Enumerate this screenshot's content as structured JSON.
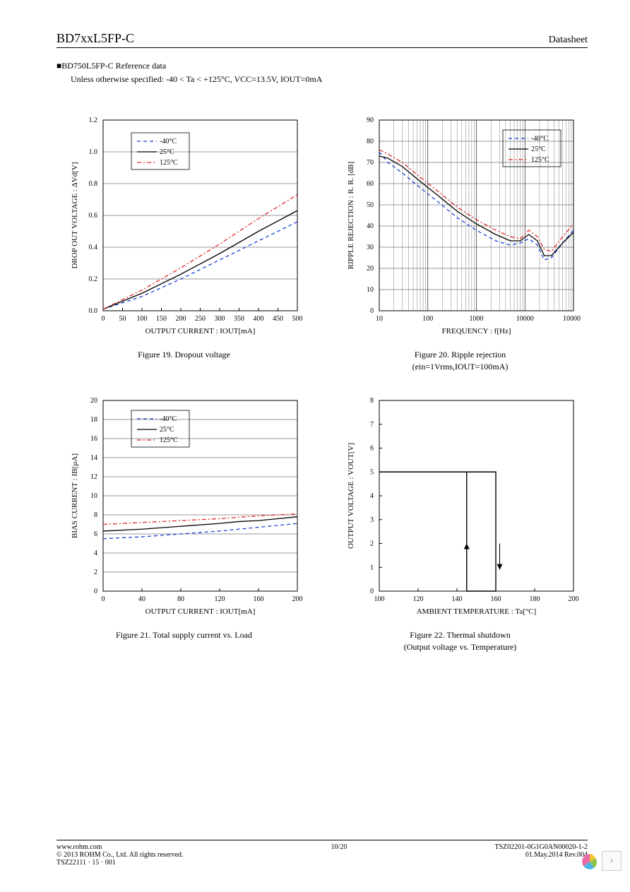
{
  "header": {
    "part": "BD7xxL5FP-C",
    "doc_type": "Datasheet"
  },
  "section": {
    "title": "■BD750L5FP-C Reference data",
    "conditions": "Unless otherwise specified: -40 < Ta < +125°C, VCC=13.5V, IOUT=0mA"
  },
  "legend_labels": [
    "-40°C",
    "25°C",
    "125°C"
  ],
  "legend_colors": {
    "m40": "#1a3fd6",
    "25": "#000000",
    "125": "#e02a2a"
  },
  "chart19": {
    "caption": "Figure 19. Dropout voltage",
    "xlabel": "OUTPUT CURRENT : IOUT[mA]",
    "ylabel": "DROP OUT VOLTAGE : ΔVd[V]",
    "xlim": [
      0,
      500
    ],
    "xticks": [
      0,
      50,
      100,
      150,
      200,
      250,
      300,
      350,
      400,
      450,
      500
    ],
    "ylim": [
      0.0,
      1.2
    ],
    "yticks": [
      0.0,
      0.2,
      0.4,
      0.6,
      0.8,
      1.0,
      1.2
    ],
    "series": {
      "m40": [
        [
          0,
          0.01
        ],
        [
          100,
          0.09
        ],
        [
          200,
          0.2
        ],
        [
          300,
          0.32
        ],
        [
          400,
          0.44
        ],
        [
          500,
          0.56
        ]
      ],
      "25": [
        [
          0,
          0.01
        ],
        [
          100,
          0.11
        ],
        [
          200,
          0.23
        ],
        [
          300,
          0.36
        ],
        [
          400,
          0.5
        ],
        [
          500,
          0.63
        ]
      ],
      "125": [
        [
          0,
          0.01
        ],
        [
          100,
          0.13
        ],
        [
          200,
          0.27
        ],
        [
          300,
          0.42
        ],
        [
          400,
          0.58
        ],
        [
          500,
          0.73
        ]
      ]
    }
  },
  "chart20": {
    "caption": "Figure 20. Ripple rejection",
    "caption_sub": "(ein=1Vrms,IOUT=100mA)",
    "xlabel": "FREQUENCY : f[Hz]",
    "ylabel": "RIPPLE REJECTION : R. R. [dB]",
    "xlim_log": [
      10,
      100000
    ],
    "xticks_log": [
      10,
      100,
      1000,
      10000,
      100000
    ],
    "ylim": [
      0,
      90
    ],
    "yticks": [
      0,
      10,
      20,
      30,
      40,
      50,
      60,
      70,
      80,
      90
    ],
    "series": {
      "m40": [
        [
          10,
          75
        ],
        [
          15,
          70
        ],
        [
          30,
          65
        ],
        [
          70,
          58
        ],
        [
          150,
          52
        ],
        [
          400,
          44
        ],
        [
          1000,
          38
        ],
        [
          2500,
          33
        ],
        [
          5000,
          31
        ],
        [
          8000,
          32
        ],
        [
          12000,
          34
        ],
        [
          18000,
          31
        ],
        [
          25000,
          24
        ],
        [
          35000,
          25
        ],
        [
          60000,
          32
        ],
        [
          100000,
          38
        ]
      ],
      "25": [
        [
          10,
          73
        ],
        [
          15,
          72
        ],
        [
          30,
          68
        ],
        [
          70,
          61
        ],
        [
          150,
          55
        ],
        [
          400,
          47
        ],
        [
          1000,
          41
        ],
        [
          2500,
          36
        ],
        [
          5000,
          33
        ],
        [
          8000,
          33
        ],
        [
          12000,
          36
        ],
        [
          18000,
          33
        ],
        [
          25000,
          26
        ],
        [
          35000,
          26
        ],
        [
          60000,
          32
        ],
        [
          100000,
          37
        ]
      ],
      "125": [
        [
          10,
          76
        ],
        [
          15,
          74
        ],
        [
          30,
          70
        ],
        [
          70,
          63
        ],
        [
          150,
          57
        ],
        [
          400,
          49
        ],
        [
          1000,
          43
        ],
        [
          2500,
          38
        ],
        [
          5000,
          35
        ],
        [
          8000,
          34
        ],
        [
          12000,
          38
        ],
        [
          18000,
          35
        ],
        [
          25000,
          29
        ],
        [
          35000,
          28
        ],
        [
          60000,
          35
        ],
        [
          100000,
          41
        ]
      ]
    }
  },
  "chart21": {
    "caption": "Figure 21. Total supply current vs. Load",
    "xlabel": "OUTPUT CURRENT : IOUT[mA]",
    "ylabel": "BIAS CURRENT : IB[µA]",
    "xlim": [
      0,
      200
    ],
    "xticks": [
      0,
      40,
      80,
      120,
      160,
      200
    ],
    "ylim": [
      0,
      20
    ],
    "yticks": [
      0,
      2,
      4,
      6,
      8,
      10,
      12,
      14,
      16,
      18,
      20
    ],
    "series": {
      "m40": [
        [
          0,
          5.5
        ],
        [
          40,
          5.7
        ],
        [
          80,
          6.0
        ],
        [
          120,
          6.3
        ],
        [
          160,
          6.7
        ],
        [
          200,
          7.1
        ]
      ],
      "25": [
        [
          0,
          6.3
        ],
        [
          40,
          6.5
        ],
        [
          80,
          6.8
        ],
        [
          120,
          7.1
        ],
        [
          140,
          7.3
        ],
        [
          160,
          7.4
        ],
        [
          200,
          7.8
        ]
      ],
      "125": [
        [
          0,
          7.0
        ],
        [
          40,
          7.2
        ],
        [
          80,
          7.4
        ],
        [
          120,
          7.6
        ],
        [
          160,
          7.9
        ],
        [
          200,
          8.1
        ]
      ]
    }
  },
  "chart22": {
    "caption": "Figure 22. Thermal shutdown",
    "caption_sub": "(Output voltage vs. Temperature)",
    "xlabel": "AMBIENT TEMPERATURE : Ta[°C]",
    "ylabel": "OUTPUT VOLTAGE : VOUT[V]",
    "xlim": [
      100,
      200
    ],
    "xticks": [
      100,
      120,
      140,
      160,
      180,
      200
    ],
    "ylim": [
      0,
      8
    ],
    "yticks": [
      0,
      1,
      2,
      3,
      4,
      5,
      6,
      7,
      8
    ],
    "series_black": [
      [
        100,
        5.0
      ],
      [
        160,
        5.0
      ],
      [
        160,
        0.0
      ],
      [
        145,
        0.0
      ],
      [
        145,
        5.0
      ]
    ]
  },
  "footer": {
    "url": "www.rohm.com",
    "copyright": "© 2013 ROHM Co., Ltd. All rights reserved.",
    "tsz": "TSZ22111 · 15 · 001",
    "page": "10/20",
    "doc_id": "TSZ02201-0G1G0AN00020-1-2",
    "date_rev": "01.May.2014 Rev.004"
  },
  "styling": {
    "axis_color": "#000000",
    "grid_color": "#000000",
    "tick_font_size": 10,
    "label_font_size": 11,
    "caption_font_size": 12,
    "line_width": 1.3,
    "dash_m40": "5,4",
    "dash_125": "6,3,2,3"
  }
}
